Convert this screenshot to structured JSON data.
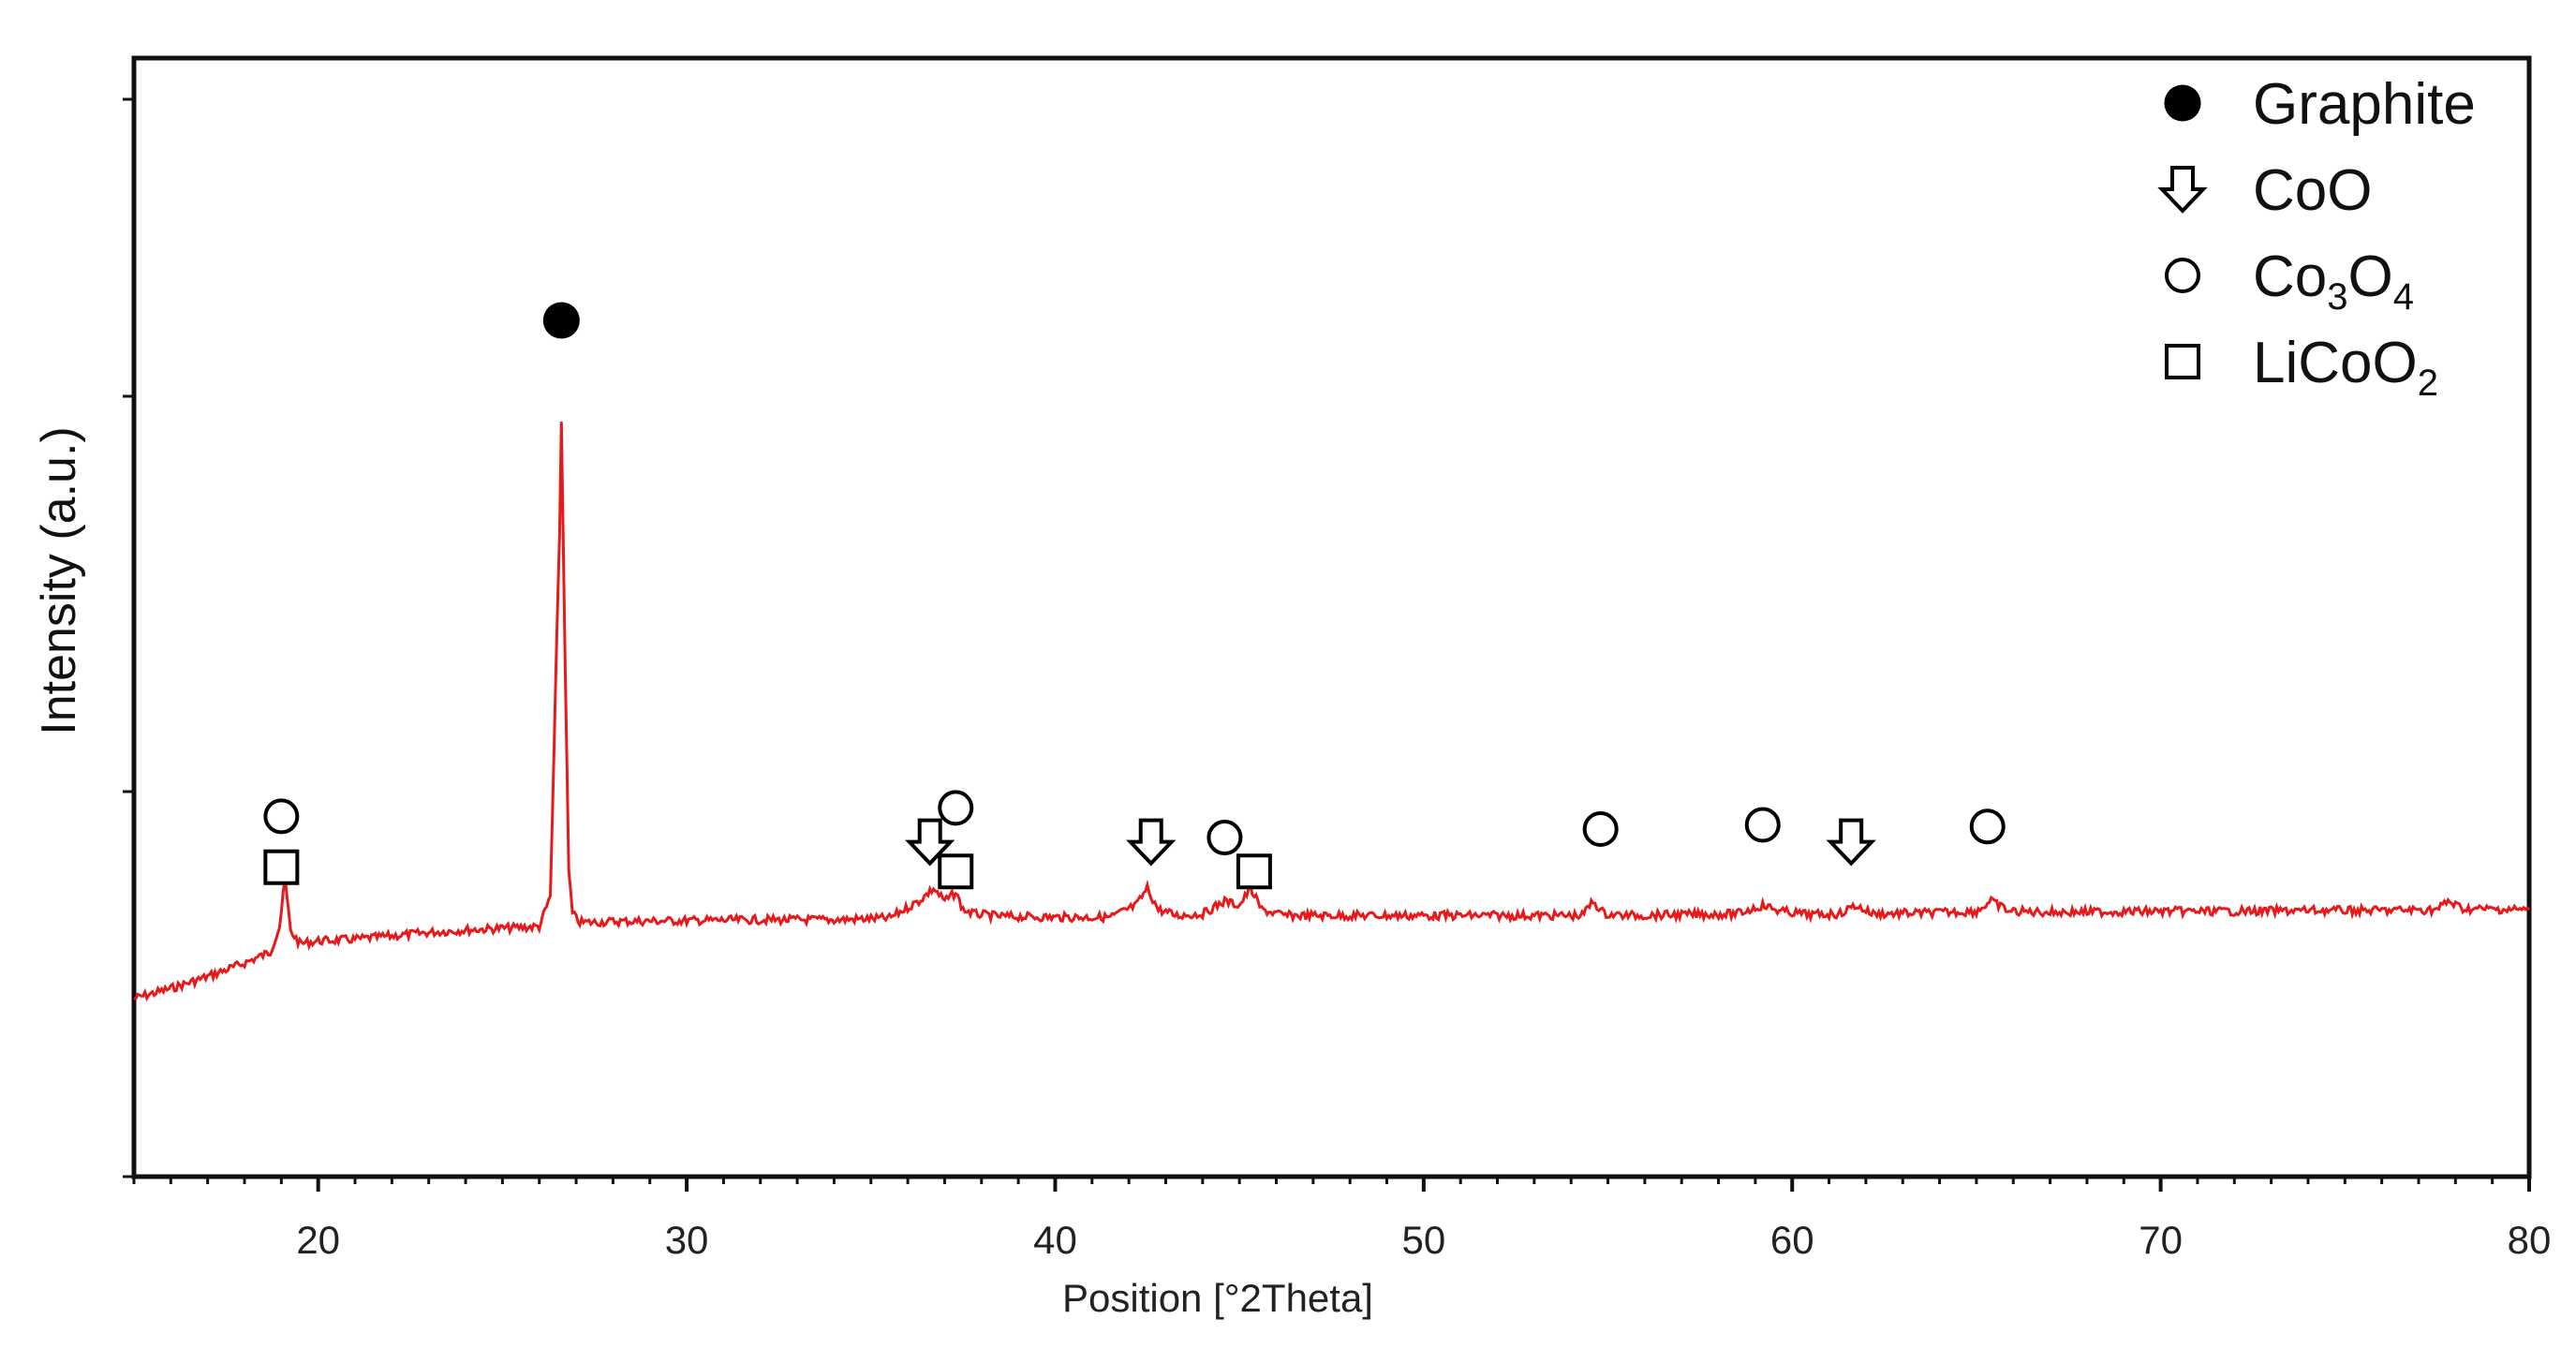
{
  "chart_data": {
    "type": "line",
    "xlabel": "Position [°2Theta]",
    "ylabel": "Intensity (a.u.)",
    "xlim": [
      15,
      80
    ],
    "ylim": [
      0,
      100
    ],
    "x_ticks": [
      20,
      30,
      40,
      50,
      60,
      70,
      80
    ],
    "y_tick_labels": false,
    "grid": false,
    "legend_position": "top-right",
    "line_color": "#e8191b",
    "series": [
      {
        "x": [
          15.0,
          16.0,
          17.0,
          18.0,
          18.7,
          18.95,
          19.1,
          19.25,
          19.5,
          20.0,
          21.0,
          22.0,
          23.0,
          24.0,
          25.0,
          26.0,
          26.3,
          26.45,
          26.55,
          26.6,
          26.7,
          26.8,
          26.9,
          27.1,
          27.5,
          28.0,
          30.0,
          32.0,
          34.0,
          35.5,
          36.3,
          36.7,
          37.0,
          37.3,
          37.5,
          37.8,
          38.5,
          40.0,
          41.5,
          42.2,
          42.5,
          42.8,
          43.3,
          44.0,
          44.6,
          45.0,
          45.3,
          45.6,
          46.2,
          48.0,
          50.0,
          52.0,
          54.3,
          54.6,
          54.9,
          55.5,
          57.0,
          58.5,
          59.2,
          59.7,
          60.5,
          61.3,
          61.7,
          62.2,
          63.5,
          65.0,
          65.4,
          65.9,
          67.0,
          70.0,
          72.0,
          74.0,
          76.0,
          77.5,
          77.8,
          78.2,
          80.0
        ],
        "y": [
          0.0,
          1.2,
          2.6,
          4.2,
          5.5,
          8.5,
          14.0,
          8.0,
          6.5,
          6.8,
          7.0,
          7.4,
          7.8,
          8.1,
          8.3,
          8.5,
          12.0,
          38.0,
          55.0,
          68.0,
          40.0,
          15.0,
          10.0,
          9.0,
          9.0,
          9.1,
          9.2,
          9.3,
          9.3,
          9.5,
          11.5,
          13.0,
          11.5,
          12.5,
          10.5,
          10.0,
          9.7,
          9.6,
          9.6,
          11.0,
          13.0,
          10.5,
          9.8,
          10.0,
          11.5,
          11.0,
          13.0,
          10.5,
          9.8,
          9.8,
          9.8,
          9.8,
          9.8,
          11.5,
          10.0,
          9.8,
          9.9,
          10.0,
          11.0,
          10.3,
          9.9,
          10.0,
          11.0,
          10.0,
          10.1,
          10.3,
          11.5,
          10.3,
          10.2,
          10.3,
          10.3,
          10.4,
          10.4,
          10.5,
          11.5,
          10.6,
          10.5
        ]
      }
    ],
    "annotations": [
      {
        "x": 26.6,
        "symbol": "filled-circle",
        "phase": "Graphite",
        "y": 80
      },
      {
        "x": 19.0,
        "symbol": "open-circle",
        "phase": "Co3O4",
        "y": 21.5
      },
      {
        "x": 19.0,
        "symbol": "open-square",
        "phase": "LiCoO2",
        "y": 15.5
      },
      {
        "x": 36.6,
        "symbol": "arrow-down",
        "phase": "CoO",
        "y": 18.5
      },
      {
        "x": 37.3,
        "symbol": "open-circle",
        "phase": "Co3O4",
        "y": 22.5
      },
      {
        "x": 37.3,
        "symbol": "open-square",
        "phase": "LiCoO2",
        "y": 15.0
      },
      {
        "x": 42.6,
        "symbol": "arrow-down",
        "phase": "CoO",
        "y": 18.5
      },
      {
        "x": 44.6,
        "symbol": "open-circle",
        "phase": "Co3O4",
        "y": 19.0
      },
      {
        "x": 45.4,
        "symbol": "open-square",
        "phase": "LiCoO2",
        "y": 15.0
      },
      {
        "x": 54.8,
        "symbol": "open-circle",
        "phase": "Co3O4",
        "y": 20.0
      },
      {
        "x": 59.2,
        "symbol": "open-circle",
        "phase": "Co3O4",
        "y": 20.5
      },
      {
        "x": 61.6,
        "symbol": "arrow-down",
        "phase": "CoO",
        "y": 18.5
      },
      {
        "x": 65.3,
        "symbol": "open-circle",
        "phase": "Co3O4",
        "y": 20.3
      }
    ],
    "legend": [
      {
        "symbol": "filled-circle",
        "label": "Graphite",
        "subscript_label": [
          "Graphite"
        ]
      },
      {
        "symbol": "arrow-down",
        "label": "CoO",
        "subscript_label": [
          "CoO"
        ]
      },
      {
        "symbol": "open-circle",
        "label": "Co3O4",
        "subscript_label": [
          "Co",
          "3",
          "O",
          "4"
        ]
      },
      {
        "symbol": "open-square",
        "label": "LiCoO2",
        "subscript_label": [
          "LiCoO",
          "2"
        ]
      }
    ]
  }
}
